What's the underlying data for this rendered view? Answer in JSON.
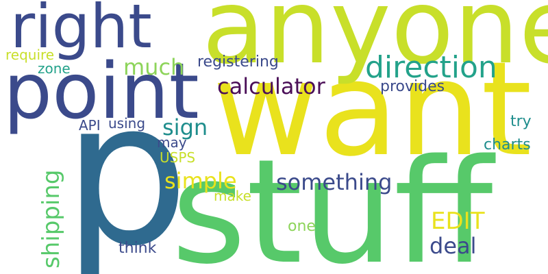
{
  "words": {
    "p": "p",
    "stuff": "stuff",
    "want": "want",
    "anyone": "anyone",
    "point": "point",
    "right": "right",
    "direction": "direction",
    "calculator": "calculator",
    "much": "much",
    "sign": "sign",
    "something": "something",
    "shipping": "shipping",
    "simple": "simple",
    "deal": "deal",
    "edit": "EDIT",
    "registering": "registering",
    "provides": "provides",
    "require": "require",
    "zone": "zone",
    "api": "API",
    "using": "using",
    "may": "may",
    "usps": "USPS",
    "make": "make",
    "one": "one",
    "think": "think",
    "try": "try",
    "charts": "charts"
  },
  "colors": {
    "background": "#ffffff",
    "navy": "#3b4a8b",
    "darkblue": "#2f6a8f",
    "teal": "#23a28a",
    "green": "#57c96a",
    "lightgreen": "#8dd45a",
    "lime": "#c8df2a",
    "yellow": "#e9e21d",
    "purple": "#4b0f58",
    "tealblue": "#1e8d8c"
  }
}
